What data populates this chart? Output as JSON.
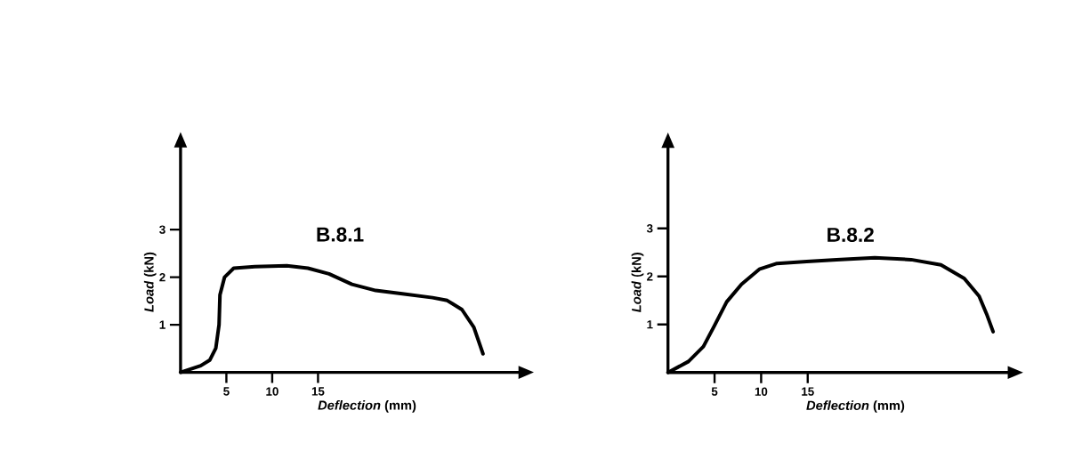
{
  "chart_data": [
    {
      "type": "line",
      "title": "B.8.1",
      "xlabel": "*Deflection* (mm)",
      "ylabel": "*Load* (kN)",
      "color": "#000000",
      "line_style": "solid",
      "x": [
        0,
        2.2,
        3.2,
        3.85,
        4.2,
        4.3,
        4.8,
        5.8,
        8.1,
        11.6,
        13.9,
        16.2,
        18.7,
        21.3,
        24.2,
        27.5,
        29.1,
        30.7,
        32.0,
        33.0
      ],
      "values": [
        0,
        0.14,
        0.26,
        0.51,
        1.0,
        1.63,
        2.0,
        2.19,
        2.22,
        2.24,
        2.19,
        2.07,
        1.85,
        1.72,
        1.65,
        1.57,
        1.51,
        1.32,
        0.95,
        0.39
      ],
      "xlim": [
        0,
        37
      ],
      "ylim": [
        0,
        4.75
      ],
      "xticks": [
        5,
        10,
        15
      ],
      "yticks": [
        1,
        2,
        3
      ]
    },
    {
      "type": "line",
      "title": "B.8.2",
      "xlabel": "*Deflection* (mm)",
      "ylabel": "*Load* (kN)",
      "color": "#000000",
      "line_style": "solid",
      "x": [
        0,
        2.2,
        3.8,
        5.0,
        6.3,
        7.9,
        9.8,
        11.7,
        14.9,
        18.1,
        22.2,
        26.1,
        29.3,
        31.8,
        33.4,
        34.2,
        34.9
      ],
      "values": [
        0,
        0.23,
        0.54,
        0.98,
        1.47,
        1.84,
        2.15,
        2.27,
        2.31,
        2.35,
        2.39,
        2.35,
        2.24,
        1.96,
        1.59,
        1.22,
        0.85
      ],
      "xlim": [
        0,
        36.6
      ],
      "ylim": [
        0,
        4.7
      ],
      "xticks": [
        5,
        10,
        15
      ],
      "yticks": [
        1,
        2,
        3
      ]
    }
  ]
}
